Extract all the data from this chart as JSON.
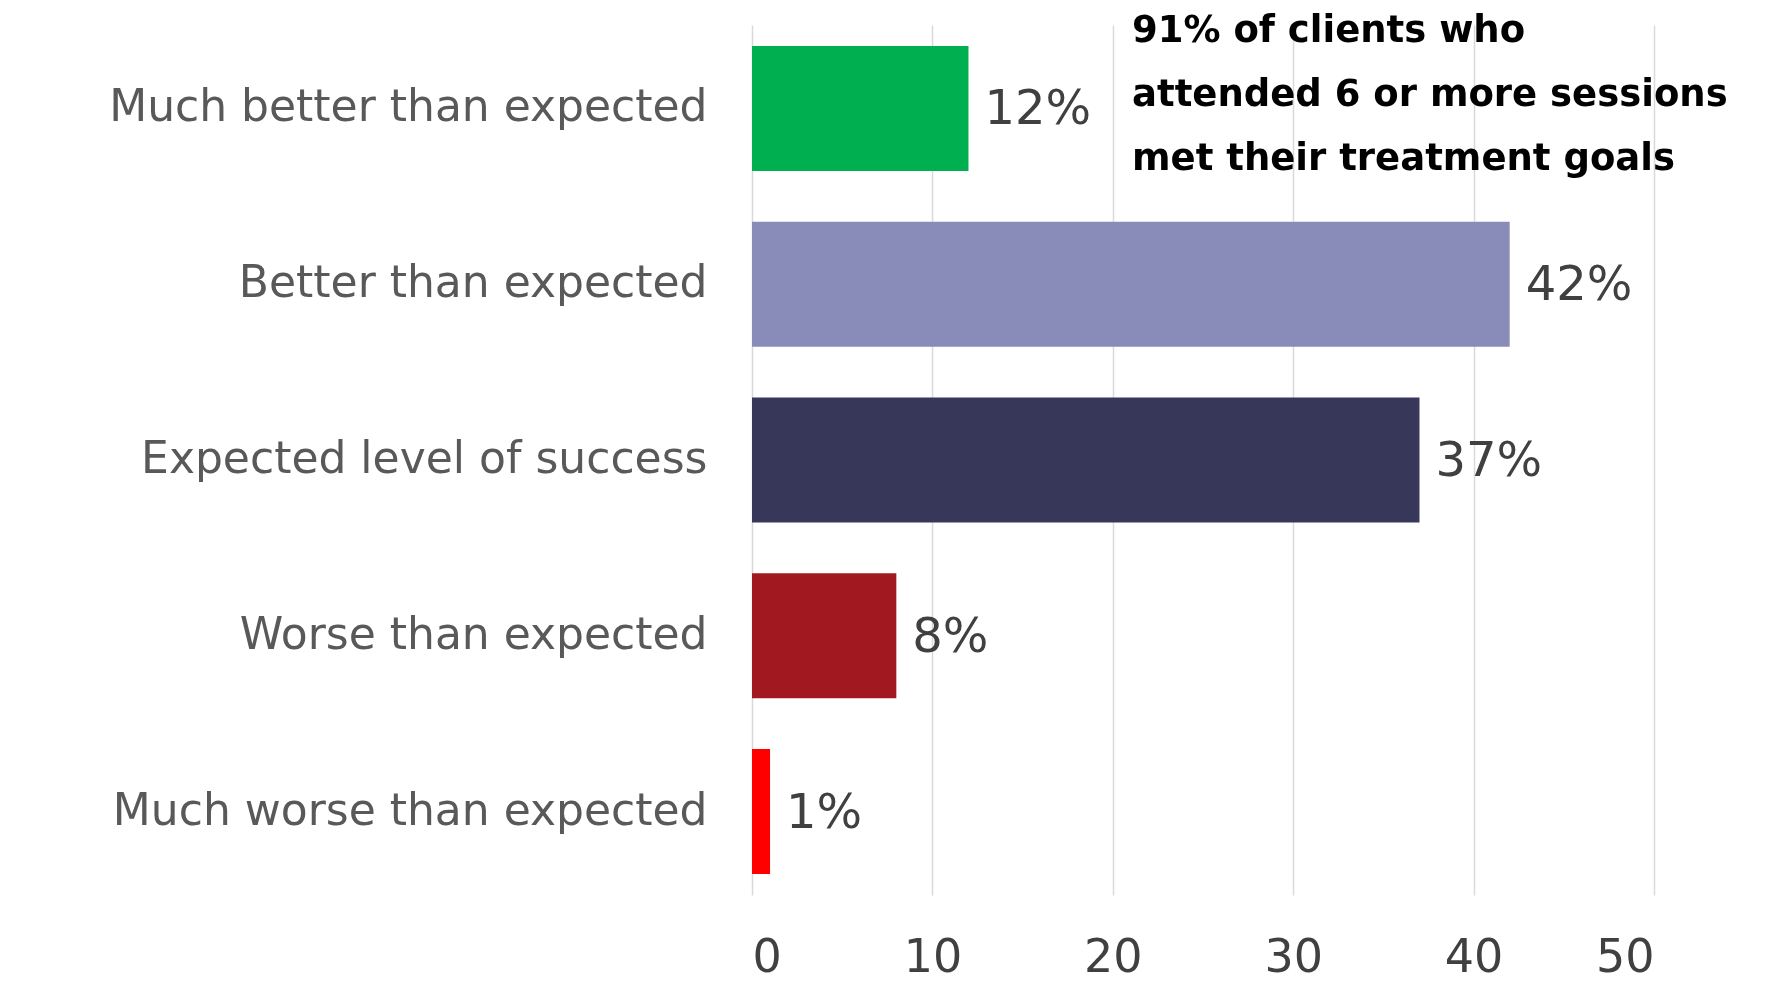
{
  "chart_data": {
    "type": "bar",
    "orientation": "horizontal",
    "categories": [
      "Much better than expected",
      "Better than expected",
      "Expected level of success",
      "Worse than expected",
      "Much worse than expected"
    ],
    "values": [
      12,
      42,
      37,
      8,
      1
    ],
    "colors": [
      "#00b050",
      "#898cb8",
      "#363759",
      "#a21820",
      "#fe0000"
    ],
    "value_labels": [
      "12%",
      "42%",
      "37%",
      "8%",
      "1%"
    ],
    "xlim": [
      0,
      50
    ],
    "xticks": [
      0,
      10,
      20,
      30,
      40,
      50
    ],
    "grid": "x",
    "annotations": [
      "91% of clients who\nattended 6 or more sessions\nmet their treatment goals"
    ]
  }
}
